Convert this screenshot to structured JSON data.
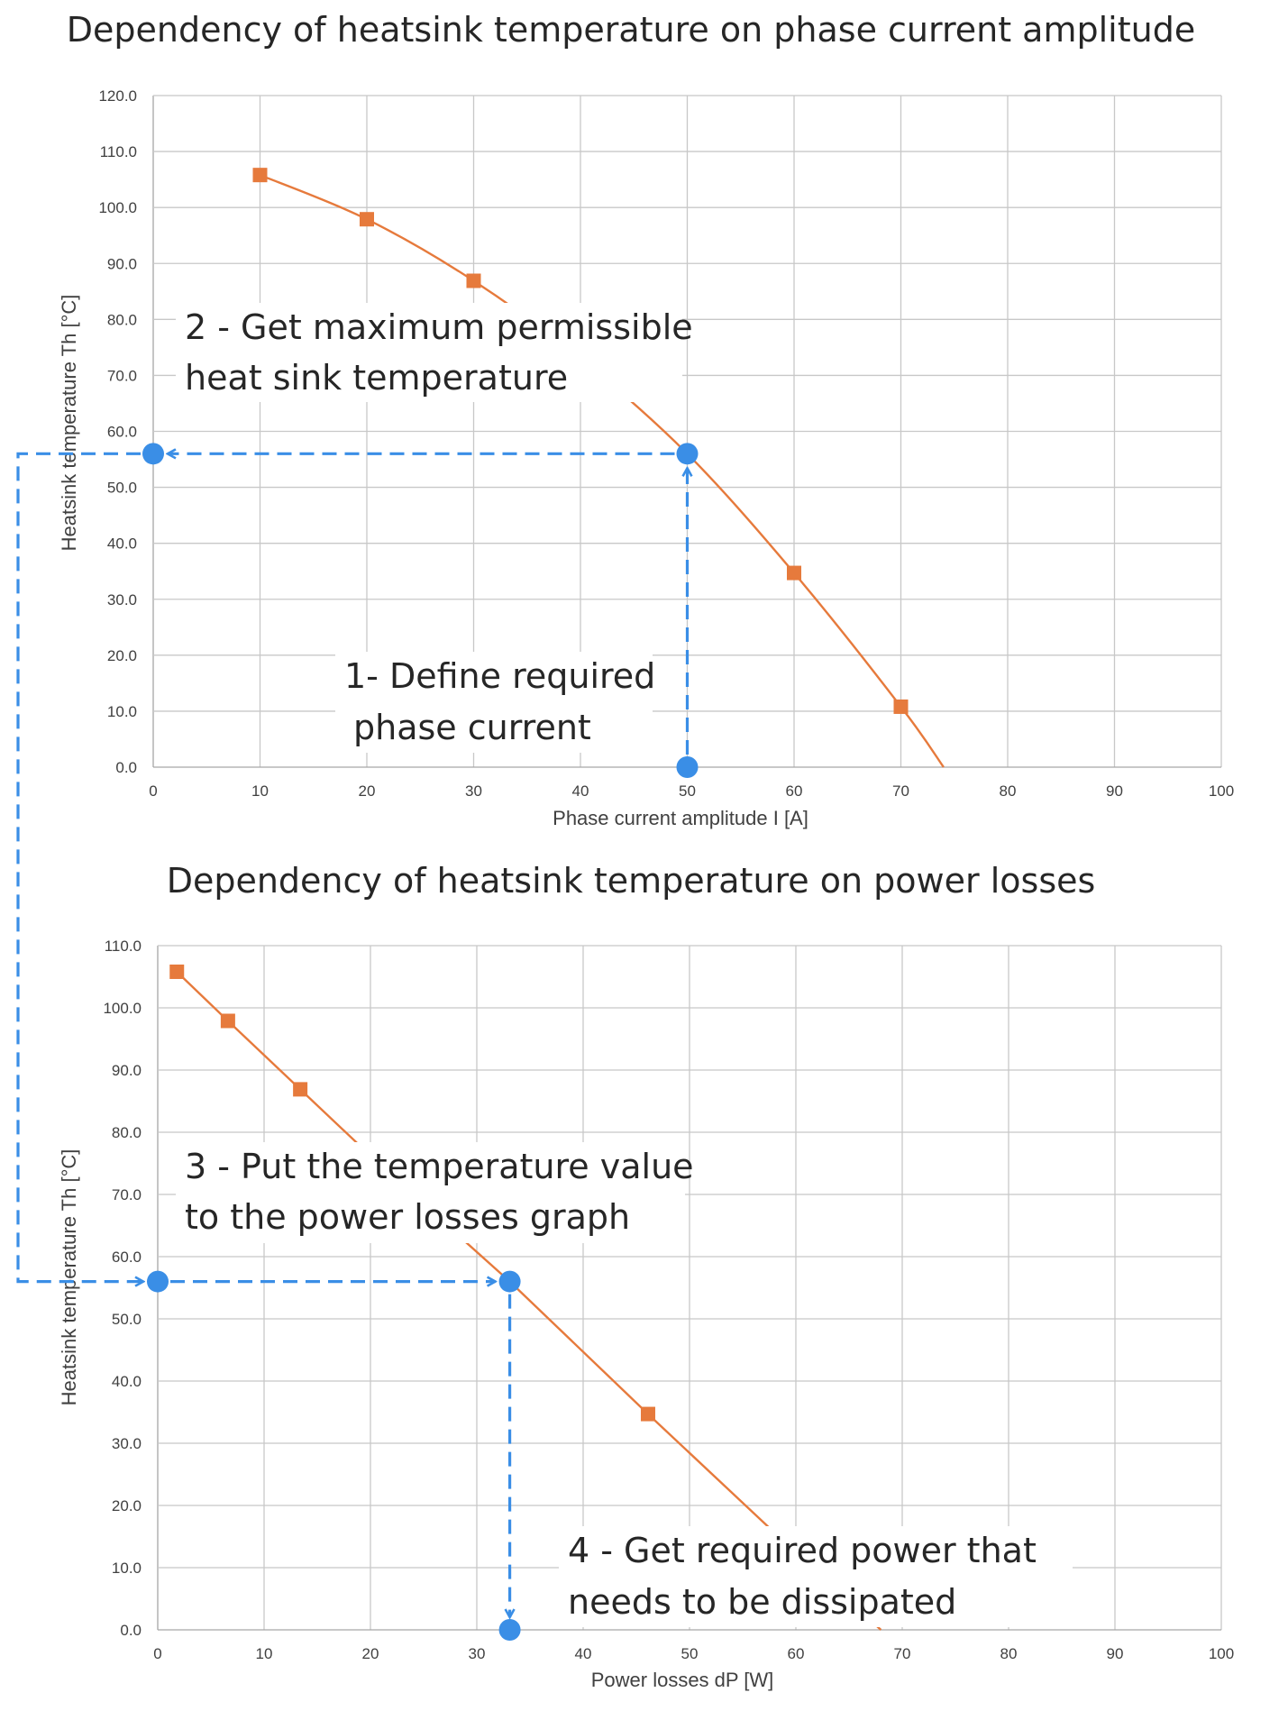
{
  "colors": {
    "series": "#E67A3C",
    "guide": "#3A8EE6",
    "grid": "#C8C8C8",
    "axis": "#A6A6A6",
    "annotation_bg": "#FFFFFF"
  },
  "chart_data": [
    {
      "type": "scatter",
      "title": "Dependency of heatsink temperature on phase current amplitude",
      "xlabel": "Phase current amplitude I [A]",
      "ylabel": "Heatsink temperature Th [°C]",
      "xlim": [
        0,
        100
      ],
      "ylim": [
        0,
        120
      ],
      "xticks": [
        "0",
        "10",
        "20",
        "30",
        "40",
        "50",
        "60",
        "70",
        "80",
        "90",
        "100"
      ],
      "yticks": [
        "0.0",
        "10.0",
        "20.0",
        "30.0",
        "40.0",
        "50.0",
        "60.0",
        "70.0",
        "80.0",
        "90.0",
        "100.0",
        "110.0",
        "120.0"
      ],
      "grid": true,
      "series": [
        {
          "x": [
            10,
            20,
            30,
            40,
            60,
            70
          ],
          "y": [
            105.8,
            97.9,
            86.9,
            73.0,
            34.7,
            10.8
          ],
          "curve": [
            [
              10,
              105.8
            ],
            [
              20,
              97.9
            ],
            [
              30,
              86.9
            ],
            [
              40,
              73.0
            ],
            [
              50,
              56.0
            ],
            [
              60,
              34.7
            ],
            [
              70,
              10.8
            ],
            [
              74,
              0
            ]
          ]
        }
      ],
      "markers": [
        [
          0,
          56.0
        ],
        [
          50,
          56.0
        ],
        [
          50,
          0
        ]
      ],
      "annotations": [
        {
          "lines": [
            "2 - Get maximum permissible",
            "heat sink temperature"
          ]
        },
        {
          "lines": [
            "1- Define required",
            "phase current"
          ]
        }
      ]
    },
    {
      "type": "scatter",
      "title": "Dependency of heatsink temperature on power losses",
      "xlabel": "Power losses dP [W]",
      "ylabel": "Heatsink temperature Th [°C]",
      "xlim": [
        0,
        100
      ],
      "ylim": [
        0,
        110
      ],
      "xticks": [
        "0",
        "10",
        "20",
        "30",
        "40",
        "50",
        "60",
        "70",
        "80",
        "90",
        "100"
      ],
      "yticks": [
        "0.0",
        "10.0",
        "20.0",
        "30.0",
        "40.0",
        "50.0",
        "60.0",
        "70.0",
        "80.0",
        "90.0",
        "100.0",
        "110.0"
      ],
      "grid": true,
      "series": [
        {
          "x": [
            1.8,
            6.6,
            13.4,
            22.0,
            46.1,
            61.0
          ],
          "y": [
            105.8,
            97.9,
            86.9,
            73.0,
            34.7,
            10.8
          ],
          "curve": [
            [
              1.8,
              105.8
            ],
            [
              6.6,
              97.9
            ],
            [
              13.4,
              86.9
            ],
            [
              22.0,
              73.0
            ],
            [
              33.1,
              56.0
            ],
            [
              46.1,
              34.7
            ],
            [
              61.0,
              10.8
            ],
            [
              68.0,
              0
            ]
          ]
        }
      ],
      "markers": [
        [
          0,
          56.0
        ],
        [
          33.1,
          56.0
        ],
        [
          33.1,
          0
        ]
      ],
      "annotations": [
        {
          "lines": [
            "3 - Put the temperature value",
            "to the power losses graph"
          ]
        },
        {
          "lines": [
            "4 - Get required power that",
            "needs to be dissipated"
          ]
        }
      ]
    }
  ]
}
